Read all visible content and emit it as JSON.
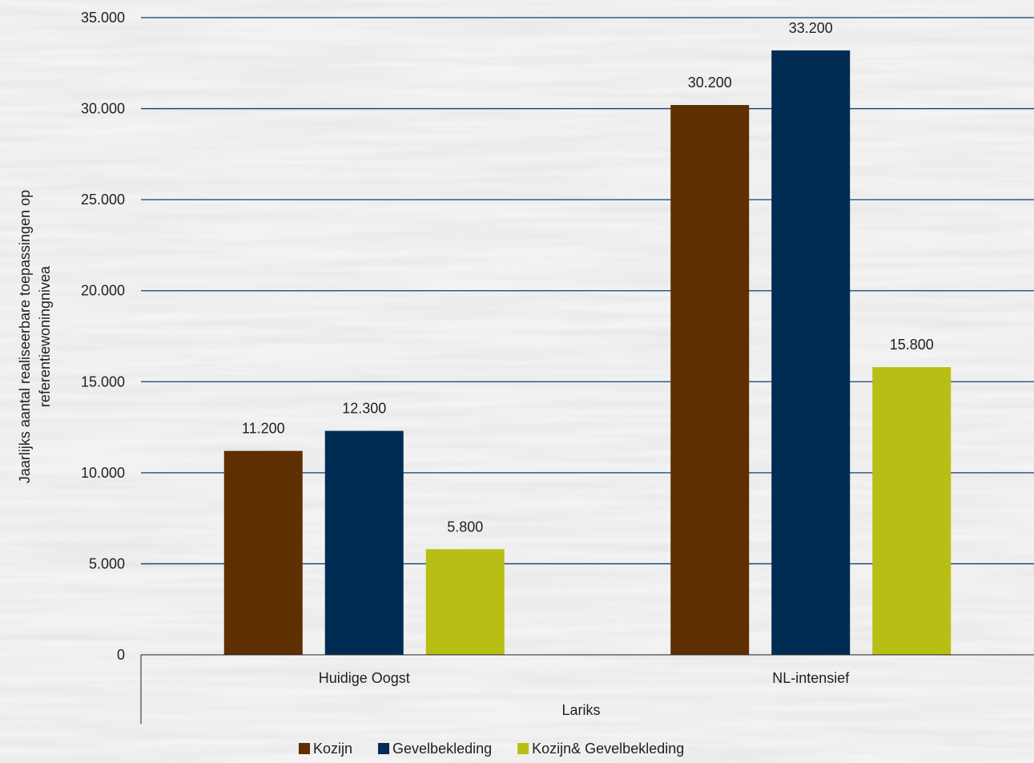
{
  "chart_data": {
    "type": "bar",
    "categories": [
      "Huidige Oogst",
      "NL-intensief"
    ],
    "series": [
      {
        "name": "Kozijn",
        "values": [
          11200,
          30200
        ],
        "color": "#5e2f00",
        "labels": [
          "11.200",
          "30.200"
        ]
      },
      {
        "name": "Gevelbekleding",
        "values": [
          12300,
          33200
        ],
        "color": "#002b53",
        "labels": [
          "12.300",
          "33.200"
        ]
      },
      {
        "name": "Kozijn& Gevelbekleding",
        "values": [
          5800,
          15800
        ],
        "color": "#b8be14",
        "labels": [
          "5.800",
          "15.800"
        ]
      }
    ],
    "ylim": [
      0,
      35000
    ],
    "yticks": [
      0,
      5000,
      10000,
      15000,
      20000,
      25000,
      30000,
      35000
    ],
    "ytick_labels": [
      "0",
      "5.000",
      "10.000",
      "15.000",
      "20.000",
      "25.000",
      "30.000",
      "35.000"
    ],
    "ylabel_lines": [
      "Jaarlijks aantal realiseerbare toepassingen op",
      "referentiewoningnivea"
    ],
    "group_label": "Lariks",
    "grid": true,
    "legend_position": "bottom",
    "gridline_color": "#0d3e73",
    "background": "textured-white"
  }
}
